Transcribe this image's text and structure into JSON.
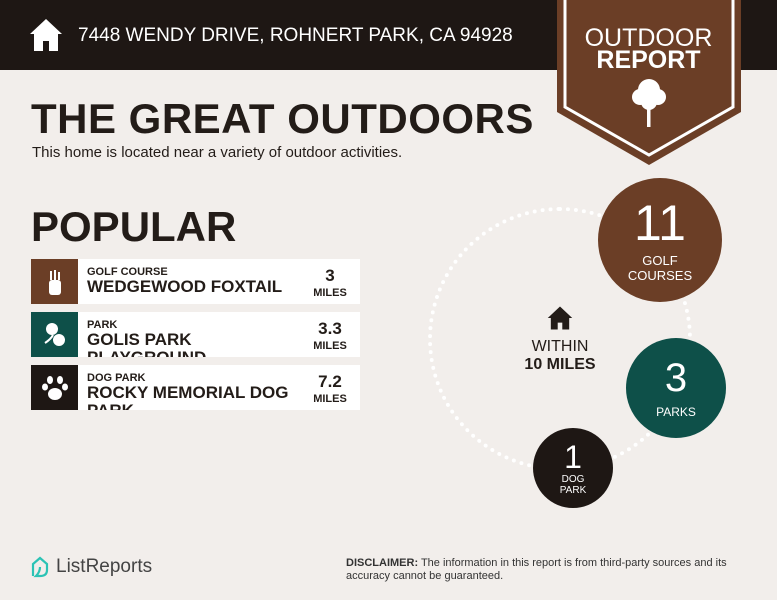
{
  "header": {
    "address": "7448 WENDY DRIVE, ROHNERT PARK, CA 94928"
  },
  "badge": {
    "line1": "OUTDOOR",
    "line2": "REPORT"
  },
  "title": "THE GREAT OUTDOORS",
  "subtitle": "This home is located near a variety of outdoor activities.",
  "popular": {
    "heading": "POPULAR",
    "items": [
      {
        "category": "GOLF COURSE",
        "name": "WEDGEWOOD FOXTAIL",
        "distance": "3",
        "unit": "MILES",
        "icon": "golf-bag-icon",
        "color": "#6b3e26"
      },
      {
        "category": "PARK",
        "name": "GOLIS PARK PLAYGROUND",
        "distance": "3.3",
        "unit": "MILES",
        "icon": "trees-icon",
        "color": "#0e5049"
      },
      {
        "category": "DOG PARK",
        "name": "ROCKY MEMORIAL DOG PARK",
        "distance": "7.2",
        "unit": "MILES",
        "icon": "paw-icon",
        "color": "#1e1714"
      }
    ]
  },
  "radius": {
    "line1": "WITHIN",
    "line2": "10 MILES"
  },
  "counts": [
    {
      "value": "11",
      "label1": "GOLF",
      "label2": "COURSES",
      "color": "#6b3e26"
    },
    {
      "value": "3",
      "label1": "PARKS",
      "color": "#0e5049"
    },
    {
      "value": "1",
      "label1": "DOG",
      "label2": "PARK",
      "color": "#1e1714"
    }
  ],
  "footer": {
    "brand": "ListReports",
    "disclaimer_label": "DISCLAIMER:",
    "disclaimer": " The information in this report is from third-party sources and its accuracy cannot be guaranteed."
  }
}
